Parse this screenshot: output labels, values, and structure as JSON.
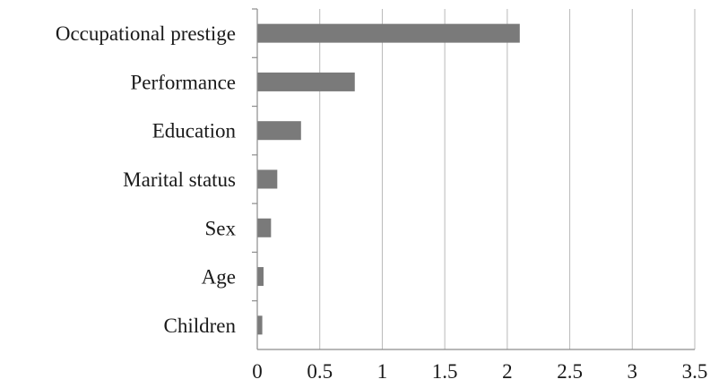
{
  "chart_data": {
    "type": "bar",
    "orientation": "horizontal",
    "title": "",
    "xlabel": "",
    "ylabel": "",
    "categories": [
      "Occupational prestige",
      "Performance",
      "Education",
      "Marital status",
      "Sex",
      "Age",
      "Children"
    ],
    "values": [
      2.1,
      0.78,
      0.35,
      0.16,
      0.11,
      0.05,
      0.04
    ],
    "xlim": [
      0,
      3.5
    ],
    "xticks": [
      "0",
      "0.5",
      "1",
      "1.5",
      "2",
      "2.5",
      "3",
      "3.5"
    ],
    "grid": "vertical",
    "legend": "none",
    "bar_color": "#7a7a7a",
    "grid_color": "#b9b9b9"
  }
}
